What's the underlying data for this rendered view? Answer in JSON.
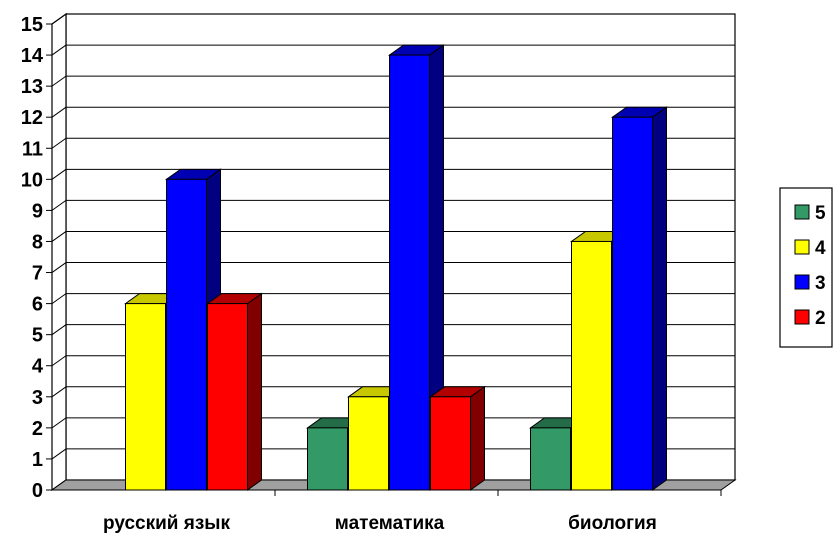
{
  "chart_data": {
    "type": "bar",
    "bar_style": "3d",
    "categories": [
      "русский язык",
      "математика",
      "биология"
    ],
    "series": [
      {
        "name": "5",
        "values": [
          0,
          2,
          2
        ],
        "color": "#339966"
      },
      {
        "name": "4",
        "values": [
          6,
          3,
          8
        ],
        "color": "#ffff00"
      },
      {
        "name": "3",
        "values": [
          10,
          14,
          12
        ],
        "color": "#0000ff"
      },
      {
        "name": "2",
        "values": [
          6,
          3,
          0
        ],
        "color": "#ff0000"
      }
    ],
    "ylim": [
      0,
      15
    ],
    "yticks": [
      "0",
      "1",
      "2",
      "3",
      "4",
      "5",
      "6",
      "7",
      "8",
      "9",
      "10",
      "11",
      "12",
      "13",
      "14",
      "15"
    ],
    "grid": true,
    "legend": "right",
    "title": "",
    "xlabel": "",
    "ylabel": "",
    "colors": {
      "floor": "#a0a0a0",
      "gridline": "#000000",
      "background": "#ffffff"
    }
  }
}
